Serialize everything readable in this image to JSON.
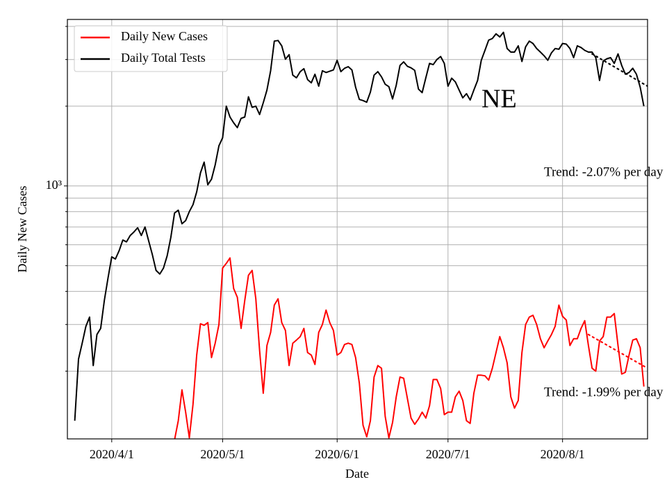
{
  "chart_data": {
    "type": "line",
    "x_label": "Date",
    "y_label": "Daily New Cases",
    "log_scale": true,
    "grid": true,
    "legend": "upper left",
    "xlim": [
      "2020/3/20",
      "2020/8/24"
    ],
    "xticks": [
      "2020/4/1",
      "2020/5/1",
      "2020/6/1",
      "2020/7/1",
      "2020/8/1"
    ],
    "ylim": [
      111,
      4250
    ],
    "yticks": [
      {
        "value": 1000,
        "label": "10³"
      }
    ],
    "yticks_minor": [
      200,
      300,
      400,
      500,
      600,
      700,
      800,
      900,
      2000,
      3000,
      4000
    ],
    "x": [
      "2020/3/22",
      "2020/3/23",
      "2020/3/24",
      "2020/3/25",
      "2020/3/26",
      "2020/3/27",
      "2020/3/28",
      "2020/3/29",
      "2020/3/30",
      "2020/3/31",
      "2020/4/1",
      "2020/4/2",
      "2020/4/3",
      "2020/4/4",
      "2020/4/5",
      "2020/4/6",
      "2020/4/7",
      "2020/4/8",
      "2020/4/9",
      "2020/4/10",
      "2020/4/11",
      "2020/4/12",
      "2020/4/13",
      "2020/4/14",
      "2020/4/15",
      "2020/4/16",
      "2020/4/17",
      "2020/4/18",
      "2020/4/19",
      "2020/4/20",
      "2020/4/21",
      "2020/4/22",
      "2020/4/23",
      "2020/4/24",
      "2020/4/25",
      "2020/4/26",
      "2020/4/27",
      "2020/4/28",
      "2020/4/29",
      "2020/4/30",
      "2020/5/1",
      "2020/5/2",
      "2020/5/3",
      "2020/5/4",
      "2020/5/5",
      "2020/5/6",
      "2020/5/7",
      "2020/5/8",
      "2020/5/9",
      "2020/5/10",
      "2020/5/11",
      "2020/5/12",
      "2020/5/13",
      "2020/5/14",
      "2020/5/15",
      "2020/5/16",
      "2020/5/17",
      "2020/5/18",
      "2020/5/19",
      "2020/5/20",
      "2020/5/21",
      "2020/5/22",
      "2020/5/23",
      "2020/5/24",
      "2020/5/25",
      "2020/5/26",
      "2020/5/27",
      "2020/5/28",
      "2020/5/29",
      "2020/5/30",
      "2020/5/31",
      "2020/6/1",
      "2020/6/2",
      "2020/6/3",
      "2020/6/4",
      "2020/6/5",
      "2020/6/6",
      "2020/6/7",
      "2020/6/8",
      "2020/6/9",
      "2020/6/10",
      "2020/6/11",
      "2020/6/12",
      "2020/6/13",
      "2020/6/14",
      "2020/6/15",
      "2020/6/16",
      "2020/6/17",
      "2020/6/18",
      "2020/6/19",
      "2020/6/20",
      "2020/6/21",
      "2020/6/22",
      "2020/6/23",
      "2020/6/24",
      "2020/6/25",
      "2020/6/26",
      "2020/6/27",
      "2020/6/28",
      "2020/6/29",
      "2020/6/30",
      "2020/7/1",
      "2020/7/2",
      "2020/7/3",
      "2020/7/4",
      "2020/7/5",
      "2020/7/6",
      "2020/7/7",
      "2020/7/8",
      "2020/7/9",
      "2020/7/10",
      "2020/7/11",
      "2020/7/12",
      "2020/7/13",
      "2020/7/14",
      "2020/7/15",
      "2020/7/16",
      "2020/7/17",
      "2020/7/18",
      "2020/7/19",
      "2020/7/20",
      "2020/7/21",
      "2020/7/22",
      "2020/7/23",
      "2020/7/24",
      "2020/7/25",
      "2020/7/26",
      "2020/7/27",
      "2020/7/28",
      "2020/7/29",
      "2020/7/30",
      "2020/7/31",
      "2020/8/1",
      "2020/8/2",
      "2020/8/3",
      "2020/8/4",
      "2020/8/5",
      "2020/8/6",
      "2020/8/7",
      "2020/8/8",
      "2020/8/9",
      "2020/8/10",
      "2020/8/11",
      "2020/8/12",
      "2020/8/13",
      "2020/8/14",
      "2020/8/15",
      "2020/8/16",
      "2020/8/17",
      "2020/8/18",
      "2020/8/19",
      "2020/8/20",
      "2020/8/21",
      "2020/8/22",
      "2020/8/23"
    ],
    "series": [
      {
        "name": "Daily New Cases",
        "color": "#ff0000",
        "values": [
          null,
          null,
          null,
          null,
          null,
          null,
          null,
          null,
          null,
          null,
          null,
          null,
          null,
          null,
          null,
          null,
          null,
          null,
          null,
          null,
          null,
          null,
          null,
          null,
          null,
          null,
          100,
          110,
          130,
          170,
          140,
          112,
          150,
          230,
          302,
          298,
          305,
          225,
          255,
          300,
          490,
          510,
          535,
          410,
          380,
          290,
          370,
          460,
          480,
          375,
          240,
          165,
          250,
          280,
          355,
          375,
          305,
          285,
          210,
          255,
          262,
          270,
          290,
          235,
          230,
          212,
          280,
          300,
          340,
          305,
          285,
          230,
          235,
          252,
          255,
          252,
          225,
          180,
          125,
          113,
          130,
          190,
          210,
          205,
          135,
          112,
          128,
          160,
          190,
          188,
          158,
          133,
          126,
          132,
          140,
          133,
          148,
          186,
          186,
          172,
          137,
          140,
          140,
          160,
          168,
          155,
          130,
          127,
          165,
          193,
          193,
          192,
          185,
          205,
          235,
          270,
          245,
          215,
          160,
          145,
          155,
          235,
          300,
          320,
          325,
          300,
          265,
          245,
          260,
          275,
          295,
          355,
          322,
          312,
          250,
          265,
          265,
          290,
          310,
          250,
          205,
          200,
          260,
          270,
          320,
          320,
          330,
          250,
          195,
          198,
          230,
          262,
          265,
          245,
          175
        ]
      },
      {
        "name": "Daily Total Tests",
        "color": "#000000",
        "values": [
          130,
          222,
          255,
          295,
          320,
          210,
          275,
          290,
          370,
          450,
          540,
          530,
          570,
          625,
          615,
          650,
          670,
          695,
          650,
          700,
          620,
          550,
          480,
          465,
          490,
          545,
          640,
          790,
          810,
          720,
          740,
          800,
          850,
          950,
          1120,
          1230,
          1010,
          1060,
          1200,
          1418,
          1520,
          2000,
          1820,
          1730,
          1660,
          1800,
          1820,
          2170,
          1980,
          2000,
          1860,
          2060,
          2300,
          2720,
          3520,
          3540,
          3380,
          3010,
          3130,
          2620,
          2560,
          2700,
          2770,
          2520,
          2450,
          2640,
          2380,
          2720,
          2680,
          2710,
          2740,
          2980,
          2700,
          2780,
          2820,
          2740,
          2360,
          2120,
          2100,
          2070,
          2260,
          2620,
          2700,
          2580,
          2420,
          2370,
          2130,
          2400,
          2850,
          2940,
          2830,
          2790,
          2730,
          2320,
          2250,
          2560,
          2900,
          2870,
          3000,
          3080,
          2900,
          2380,
          2550,
          2470,
          2300,
          2150,
          2230,
          2110,
          2300,
          2500,
          2980,
          3250,
          3550,
          3600,
          3750,
          3650,
          3800,
          3300,
          3200,
          3200,
          3380,
          2950,
          3350,
          3520,
          3450,
          3300,
          3200,
          3100,
          2980,
          3180,
          3300,
          3280,
          3450,
          3430,
          3300,
          3050,
          3380,
          3330,
          3250,
          3200,
          3200,
          3050,
          2500,
          2960,
          3020,
          3050,
          2900,
          3150,
          2850,
          2640,
          2680,
          2780,
          2640,
          2360,
          2000
        ]
      }
    ],
    "trends": [
      {
        "color": "#000000",
        "x": [
          "2020/8/9",
          "2020/8/24"
        ],
        "values": [
          3150,
          2380
        ]
      },
      {
        "color": "#ff0000",
        "x": [
          "2020/8/8",
          "2020/8/24"
        ],
        "values": [
          275,
          205
        ]
      }
    ],
    "annotations": [
      "NE",
      "Trend: -2.07% per day",
      "Trend: -1.99% per day"
    ]
  }
}
